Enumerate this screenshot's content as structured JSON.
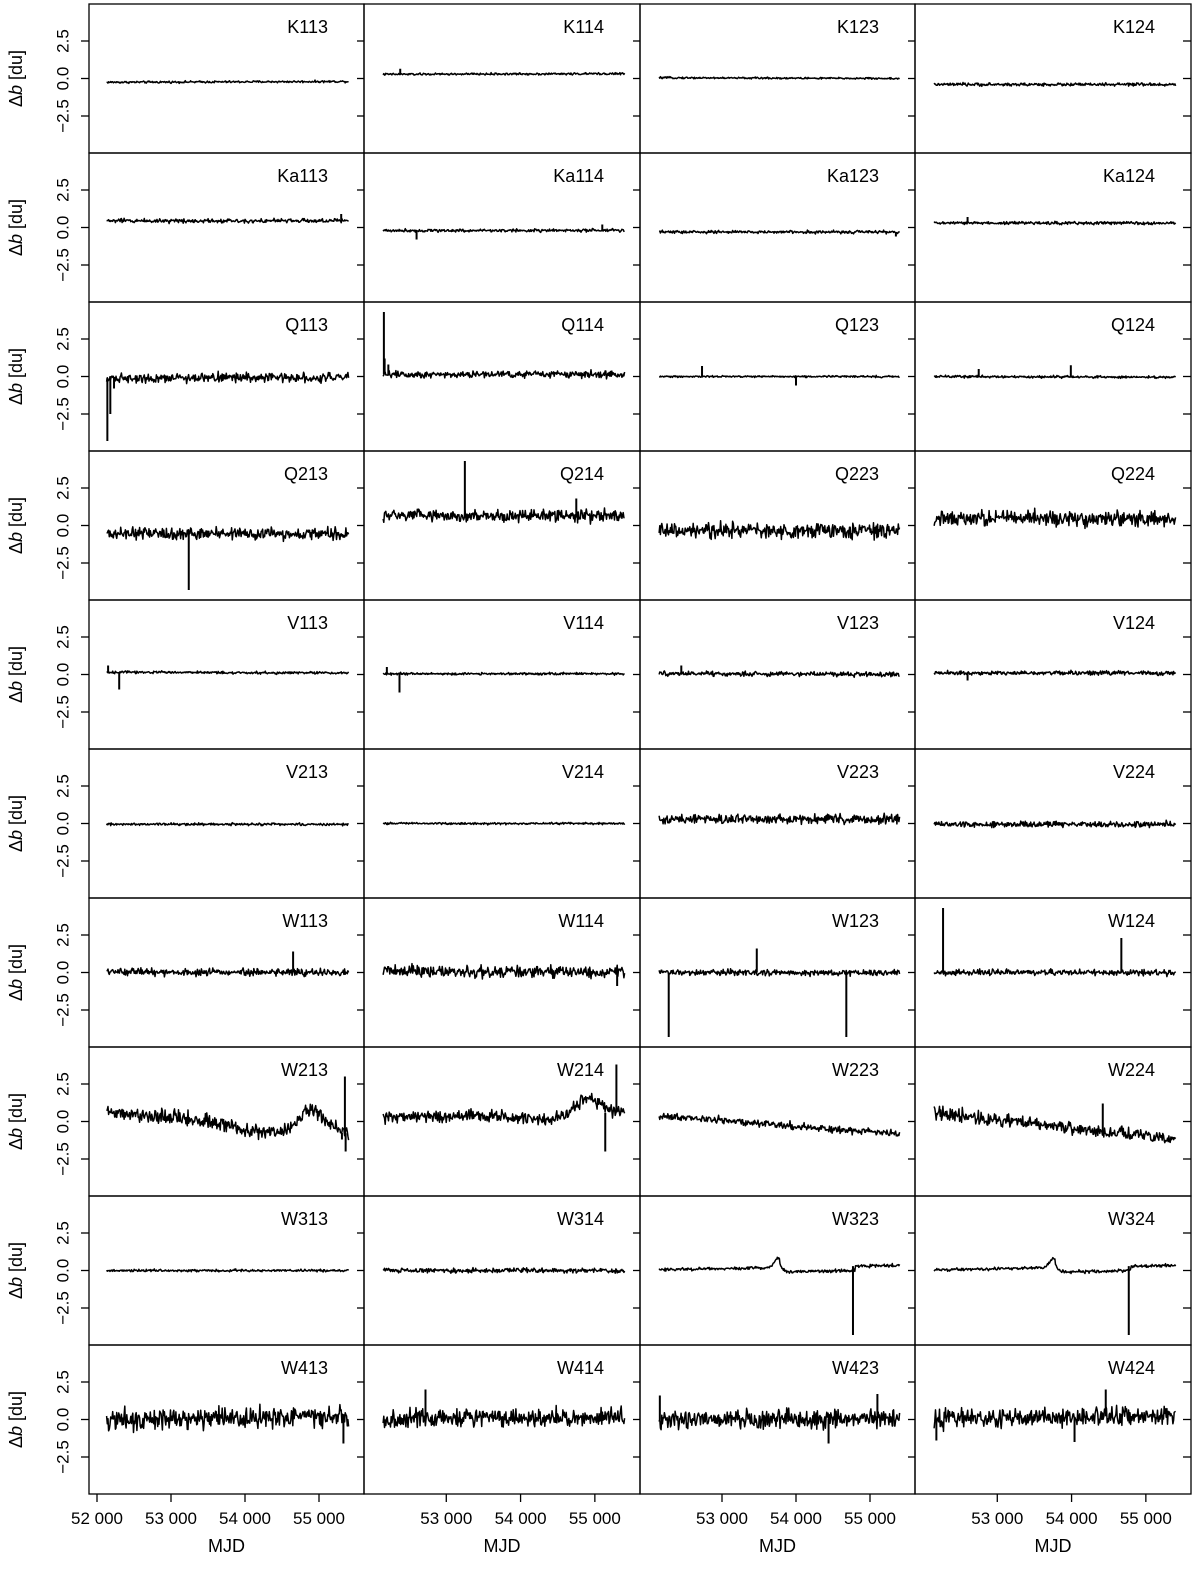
{
  "chart_data": {
    "type": "line",
    "layout": "10 rows x 4 columns of small multiples with shared axes",
    "xlabel": "MJD",
    "ylabel_prefix": "Δ",
    "ylabel_var": "b",
    "ylabel_suffix": " [du]",
    "xlim": [
      52000,
      55500
    ],
    "ylim": [
      -4.3,
      4.3
    ],
    "x_ticks": [
      52000,
      53000,
      54000,
      55000
    ],
    "x_tick_labels": [
      "52 000",
      "53 000",
      "54 000",
      "55 000"
    ],
    "y_ticks": [
      2.5,
      0.0,
      -2.5
    ],
    "y_tick_labels": [
      "2.5",
      "0.0",
      "−2.5"
    ],
    "line_color": "#000000",
    "panels": [
      {
        "name": "K113",
        "x_start": 52130,
        "x_end": 55400,
        "start": -0.25,
        "end": -0.2,
        "noise": 0.035,
        "spikes": []
      },
      {
        "name": "K114",
        "x_start": 52150,
        "x_end": 55400,
        "start": 0.28,
        "end": 0.32,
        "noise": 0.035,
        "spikes": [
          [
            52380,
            0.65
          ]
        ]
      },
      {
        "name": "K123",
        "x_start": 52150,
        "x_end": 55400,
        "start": 0.05,
        "end": 0.0,
        "noise": 0.03,
        "spikes": []
      },
      {
        "name": "K124",
        "x_start": 52150,
        "x_end": 55400,
        "start": -0.4,
        "end": -0.4,
        "noise": 0.05,
        "spikes": []
      },
      {
        "name": "Ka113",
        "x_start": 52130,
        "x_end": 55400,
        "start": 0.45,
        "end": 0.45,
        "noise": 0.07,
        "spikes": [
          [
            55300,
            0.9
          ]
        ]
      },
      {
        "name": "Ka114",
        "x_start": 52150,
        "x_end": 55400,
        "start": -0.2,
        "end": -0.2,
        "noise": 0.05,
        "spikes": [
          [
            52600,
            -0.8
          ],
          [
            55100,
            0.2
          ]
        ]
      },
      {
        "name": "Ka123",
        "x_start": 52150,
        "x_end": 55400,
        "start": -0.3,
        "end": -0.3,
        "noise": 0.05,
        "spikes": [
          [
            55350,
            -0.6
          ]
        ]
      },
      {
        "name": "Ka124",
        "x_start": 52150,
        "x_end": 55400,
        "start": 0.3,
        "end": 0.3,
        "noise": 0.05,
        "spikes": [
          [
            52600,
            0.7
          ]
        ]
      },
      {
        "name": "Q113",
        "x_start": 52130,
        "x_end": 55400,
        "start": -0.1,
        "end": -0.05,
        "noise": 0.15,
        "spikes": [
          [
            52140,
            -4.3
          ],
          [
            52180,
            -2.5
          ],
          [
            52230,
            -0.8
          ]
        ]
      },
      {
        "name": "Q114",
        "x_start": 52150,
        "x_end": 55400,
        "start": 0.15,
        "end": 0.15,
        "noise": 0.12,
        "spikes": [
          [
            52160,
            4.3
          ],
          [
            52170,
            1.2
          ],
          [
            52220,
            0.8
          ]
        ]
      },
      {
        "name": "Q123",
        "x_start": 52150,
        "x_end": 55400,
        "start": 0.0,
        "end": 0.0,
        "noise": 0.03,
        "spikes": [
          [
            52730,
            0.7
          ],
          [
            54000,
            -0.6
          ]
        ]
      },
      {
        "name": "Q124",
        "x_start": 52150,
        "x_end": 55400,
        "start": 0.0,
        "end": -0.05,
        "noise": 0.04,
        "spikes": [
          [
            52750,
            0.5
          ],
          [
            53990,
            0.75
          ]
        ]
      },
      {
        "name": "Q213",
        "x_start": 52130,
        "x_end": 55400,
        "start": -0.55,
        "end": -0.55,
        "noise": 0.2,
        "spikes": [
          [
            53240,
            -4.3
          ]
        ]
      },
      {
        "name": "Q214",
        "x_start": 52150,
        "x_end": 55400,
        "start": 0.65,
        "end": 0.65,
        "noise": 0.2,
        "spikes": [
          [
            53250,
            4.3
          ],
          [
            54750,
            1.8
          ]
        ]
      },
      {
        "name": "Q223",
        "x_start": 52150,
        "x_end": 55400,
        "start": -0.35,
        "end": -0.35,
        "noise": 0.25,
        "spikes": []
      },
      {
        "name": "Q224",
        "x_start": 52150,
        "x_end": 55400,
        "start": 0.5,
        "end": 0.45,
        "noise": 0.25,
        "spikes": []
      },
      {
        "name": "V113",
        "x_start": 52130,
        "x_end": 55400,
        "start": 0.15,
        "end": 0.1,
        "noise": 0.04,
        "spikes": [
          [
            52150,
            0.6
          ],
          [
            52300,
            -1.0
          ]
        ]
      },
      {
        "name": "V114",
        "x_start": 52150,
        "x_end": 55400,
        "start": 0.05,
        "end": 0.05,
        "noise": 0.04,
        "spikes": [
          [
            52200,
            0.5
          ],
          [
            52370,
            -1.2
          ]
        ]
      },
      {
        "name": "V123",
        "x_start": 52150,
        "x_end": 55400,
        "start": 0.05,
        "end": 0.0,
        "noise": 0.08,
        "spikes": [
          [
            52450,
            0.6
          ]
        ]
      },
      {
        "name": "V124",
        "x_start": 52150,
        "x_end": 55400,
        "start": 0.1,
        "end": 0.1,
        "noise": 0.07,
        "spikes": [
          [
            52600,
            -0.4
          ]
        ]
      },
      {
        "name": "V213",
        "x_start": 52130,
        "x_end": 55400,
        "start": -0.05,
        "end": -0.05,
        "noise": 0.04,
        "spikes": []
      },
      {
        "name": "V214",
        "x_start": 52150,
        "x_end": 55400,
        "start": 0.0,
        "end": 0.0,
        "noise": 0.035,
        "spikes": []
      },
      {
        "name": "V223",
        "x_start": 52150,
        "x_end": 55400,
        "start": 0.3,
        "end": 0.3,
        "noise": 0.15,
        "spikes": []
      },
      {
        "name": "V224",
        "x_start": 52150,
        "x_end": 55400,
        "start": -0.05,
        "end": -0.05,
        "noise": 0.1,
        "spikes": []
      },
      {
        "name": "W113",
        "x_start": 52130,
        "x_end": 55400,
        "start": 0.05,
        "end": 0.0,
        "noise": 0.12,
        "spikes": [
          [
            54650,
            1.4
          ]
        ]
      },
      {
        "name": "W114",
        "x_start": 52150,
        "x_end": 55400,
        "start": 0.05,
        "end": 0.05,
        "noise": 0.2,
        "spikes": [
          [
            55300,
            -0.9
          ]
        ]
      },
      {
        "name": "W123",
        "x_start": 52150,
        "x_end": 55400,
        "start": 0.0,
        "end": 0.0,
        "noise": 0.1,
        "spikes": [
          [
            52280,
            -4.3
          ],
          [
            53470,
            1.6
          ],
          [
            54680,
            -4.3
          ]
        ]
      },
      {
        "name": "W124",
        "x_start": 52150,
        "x_end": 55400,
        "start": 0.0,
        "end": 0.0,
        "noise": 0.1,
        "spikes": [
          [
            52270,
            4.3
          ],
          [
            54670,
            2.3
          ]
        ]
      },
      {
        "name": "W213",
        "x_start": 52130,
        "x_end": 55400,
        "start": 0.6,
        "end": -0.8,
        "noise": 0.25,
        "spikes": [
          [
            55350,
            3.0
          ],
          [
            55360,
            -2.0
          ],
          [
            55310,
            -1.2
          ]
        ]
      },
      {
        "name": "W214",
        "x_start": 52150,
        "x_end": 55400,
        "start": 0.3,
        "end": 0.6,
        "noise": 0.2,
        "spikes": [
          [
            55290,
            3.8
          ],
          [
            55140,
            -2.0
          ]
        ]
      },
      {
        "name": "W223",
        "x_start": 52150,
        "x_end": 55400,
        "start": 0.4,
        "end": -0.85,
        "noise": 0.12,
        "spikes": []
      },
      {
        "name": "W224",
        "x_start": 52150,
        "x_end": 55400,
        "start": 0.6,
        "end": -1.2,
        "noise": 0.2,
        "spikes": [
          [
            54420,
            1.2
          ]
        ]
      },
      {
        "name": "W313",
        "x_start": 52130,
        "x_end": 55400,
        "start": 0.0,
        "end": 0.0,
        "noise": 0.04,
        "spikes": []
      },
      {
        "name": "W314",
        "x_start": 52150,
        "x_end": 55400,
        "start": 0.0,
        "end": 0.0,
        "noise": 0.08,
        "spikes": []
      },
      {
        "name": "W323",
        "x_start": 52150,
        "x_end": 55400,
        "start": 0.05,
        "end": 0.35,
        "noise": 0.05,
        "spikes": [
          [
            54770,
            -4.3
          ]
        ]
      },
      {
        "name": "W324",
        "x_start": 52150,
        "x_end": 55400,
        "start": 0.05,
        "end": 0.35,
        "noise": 0.05,
        "spikes": [
          [
            54770,
            -4.3
          ]
        ]
      },
      {
        "name": "W413",
        "x_start": 52130,
        "x_end": 55400,
        "start": 0.05,
        "end": 0.15,
        "noise": 0.35,
        "spikes": [
          [
            55330,
            -1.6
          ]
        ]
      },
      {
        "name": "W414",
        "x_start": 52150,
        "x_end": 55400,
        "start": 0.05,
        "end": 0.15,
        "noise": 0.3,
        "spikes": [
          [
            52720,
            2.0
          ]
        ]
      },
      {
        "name": "W423",
        "x_start": 52150,
        "x_end": 55400,
        "start": 0.0,
        "end": 0.05,
        "noise": 0.3,
        "spikes": [
          [
            52160,
            1.6
          ],
          [
            54440,
            -1.6
          ],
          [
            55100,
            1.7
          ]
        ]
      },
      {
        "name": "W424",
        "x_start": 52150,
        "x_end": 55400,
        "start": 0.0,
        "end": 0.3,
        "noise": 0.3,
        "spikes": [
          [
            52180,
            -1.4
          ],
          [
            54040,
            -1.5
          ],
          [
            54460,
            2.0
          ]
        ]
      }
    ]
  }
}
